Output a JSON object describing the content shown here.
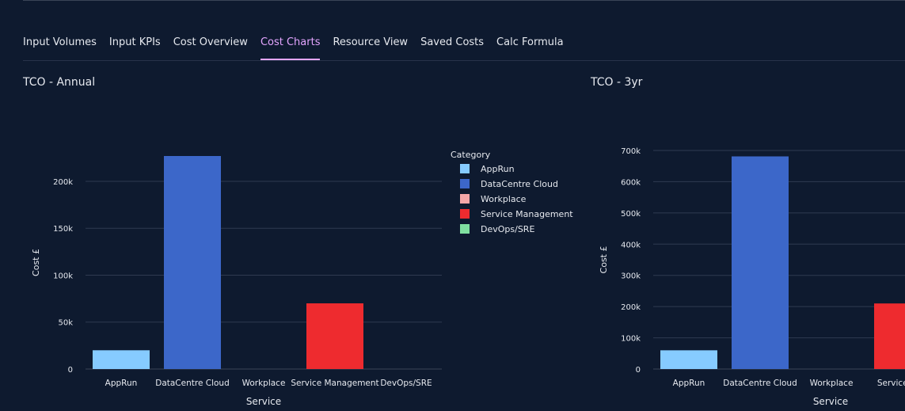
{
  "tabs": [
    {
      "label": "Input Volumes",
      "active": false
    },
    {
      "label": "Input KPIs",
      "active": false
    },
    {
      "label": "Cost Overview",
      "active": false
    },
    {
      "label": "Cost Charts",
      "active": true
    },
    {
      "label": "Resource View",
      "active": false
    },
    {
      "label": "Saved Costs",
      "active": false
    },
    {
      "label": "Calc Formula",
      "active": false
    }
  ],
  "colors": {
    "AppRun": "#86cbff",
    "DataCentre Cloud": "#3c67c9",
    "Workplace": "#f4a6a8",
    "Service Management": "#ee2b2f",
    "DevOps/SRE": "#7fe0a0"
  },
  "chart_data": [
    {
      "type": "bar",
      "title": "TCO - Annual",
      "xlabel": "Service",
      "ylabel": "Cost £",
      "categories": [
        "AppRun",
        "DataCentre Cloud",
        "Workplace",
        "Service Management",
        "DevOps/SRE"
      ],
      "values": [
        20000,
        227000,
        0,
        70000,
        0
      ],
      "ylim": [
        0,
        227000
      ],
      "yticks": [
        0,
        50000,
        100000,
        150000,
        200000
      ],
      "ytick_labels": [
        "0",
        "50k",
        "100k",
        "150k",
        "200k"
      ],
      "legend": {
        "title": "Category",
        "entries": [
          "AppRun",
          "DataCentre Cloud",
          "Workplace",
          "Service Management",
          "DevOps/SRE"
        ],
        "position": "right"
      },
      "grid": true
    },
    {
      "type": "bar",
      "title": "TCO - 3yr",
      "xlabel": "Service",
      "ylabel": "Cost £",
      "categories": [
        "AppRun",
        "DataCentre Cloud",
        "Workplace",
        "Service Management"
      ],
      "category_labels": [
        "AppRun",
        "DataCentre Cloud",
        "Workplace",
        "Service Man"
      ],
      "values": [
        60000,
        681000,
        0,
        210000
      ],
      "ylim": [
        0,
        700000
      ],
      "yticks": [
        0,
        100000,
        200000,
        300000,
        400000,
        500000,
        600000,
        700000
      ],
      "ytick_labels": [
        "0",
        "100k",
        "200k",
        "300k",
        "400k",
        "500k",
        "600k",
        "700k"
      ],
      "grid": true
    }
  ]
}
